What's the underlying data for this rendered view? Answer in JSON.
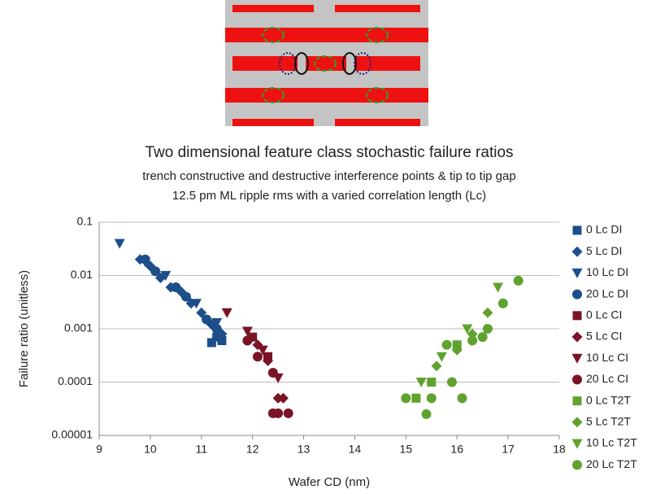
{
  "chart_data": {
    "type": "scatter",
    "title": "Two dimensional feature class stochastic failure ratios",
    "subtitle": [
      "trench constructive and destructive interference points & tip to tip gap",
      "12.5 pm ML ripple rms with a varied correlation length (Lc)"
    ],
    "x_label": "Wafer CD (nm)",
    "y_label": "Failure ratio  (unitless)",
    "xlim": [
      9,
      18
    ],
    "xticks": [
      9,
      10,
      11,
      12,
      13,
      14,
      15,
      16,
      17,
      18
    ],
    "ylim": [
      1e-05,
      0.1
    ],
    "yticks": [
      0.1,
      0.01,
      0.001,
      0.0001,
      1e-05
    ],
    "y_log": true,
    "grid": true,
    "series": [
      {
        "name": "0 Lc DI",
        "color": "#1c4e8a",
        "marker": "square",
        "x": [
          11.2,
          11.4,
          11.3
        ],
        "values": [
          0.00055,
          0.0006,
          0.0007
        ]
      },
      {
        "name": "5 Lc DI",
        "color": "#1c4e8a",
        "marker": "diamond",
        "x": [
          9.8,
          10.0,
          10.2,
          10.4,
          10.6,
          10.8,
          11.0,
          11.2,
          11.4
        ],
        "values": [
          0.02,
          0.015,
          0.009,
          0.006,
          0.005,
          0.003,
          0.002,
          0.0012,
          0.0008
        ]
      },
      {
        "name": "10 Lc DI",
        "color": "#1c4e8a",
        "marker": "triangle",
        "x": [
          9.4,
          9.9,
          10.3,
          10.9,
          11.3
        ],
        "values": [
          0.04,
          0.018,
          0.01,
          0.003,
          0.0013
        ]
      },
      {
        "name": "20 Lc DI",
        "color": "#1c4e8a",
        "marker": "circle",
        "x": [
          9.9,
          10.1,
          10.5,
          10.7,
          11.1,
          11.3
        ],
        "values": [
          0.02,
          0.012,
          0.006,
          0.004,
          0.0015,
          0.001
        ]
      },
      {
        "name": "0 Lc CI",
        "color": "#7b1326",
        "marker": "square",
        "x": [
          12.0,
          12.3
        ],
        "values": [
          0.0007,
          0.0003
        ]
      },
      {
        "name": "5 Lc CI",
        "color": "#7b1326",
        "marker": "diamond",
        "x": [
          12.1,
          12.3,
          12.5,
          12.6
        ],
        "values": [
          0.0005,
          0.00025,
          5e-05,
          5e-05
        ]
      },
      {
        "name": "10 Lc CI",
        "color": "#7b1326",
        "marker": "triangle",
        "x": [
          11.5,
          11.9,
          12.2,
          12.5
        ],
        "values": [
          0.002,
          0.0009,
          0.0004,
          0.00012
        ]
      },
      {
        "name": "20 Lc CI",
        "color": "#7b1326",
        "marker": "circle",
        "x": [
          11.9,
          12.1,
          12.4,
          12.5,
          12.7,
          12.4
        ],
        "values": [
          0.0006,
          0.0003,
          0.00015,
          2.6e-05,
          2.6e-05,
          2.6e-05
        ]
      },
      {
        "name": "0 Lc T2T",
        "color": "#5fa22e",
        "marker": "square",
        "x": [
          15.2,
          15.5,
          16.0
        ],
        "values": [
          5e-05,
          0.0001,
          0.0005
        ]
      },
      {
        "name": "5 Lc T2T",
        "color": "#5fa22e",
        "marker": "diamond",
        "x": [
          15.6,
          16.0,
          16.3,
          16.6
        ],
        "values": [
          0.0002,
          0.0004,
          0.0008,
          0.002
        ]
      },
      {
        "name": "10 Lc T2T",
        "color": "#5fa22e",
        "marker": "triangle",
        "x": [
          15.3,
          15.7,
          16.2,
          16.8
        ],
        "values": [
          0.0001,
          0.0003,
          0.001,
          0.006
        ]
      },
      {
        "name": "20 Lc T2T",
        "color": "#5fa22e",
        "marker": "circle",
        "x": [
          15.0,
          15.4,
          15.5,
          15.9,
          16.1,
          16.3,
          16.6,
          16.9,
          17.2,
          16.5,
          15.8
        ],
        "values": [
          5e-05,
          2.5e-05,
          5e-05,
          0.0001,
          5e-05,
          0.0006,
          0.001,
          0.003,
          0.008,
          0.0007,
          0.0005
        ]
      }
    ]
  }
}
